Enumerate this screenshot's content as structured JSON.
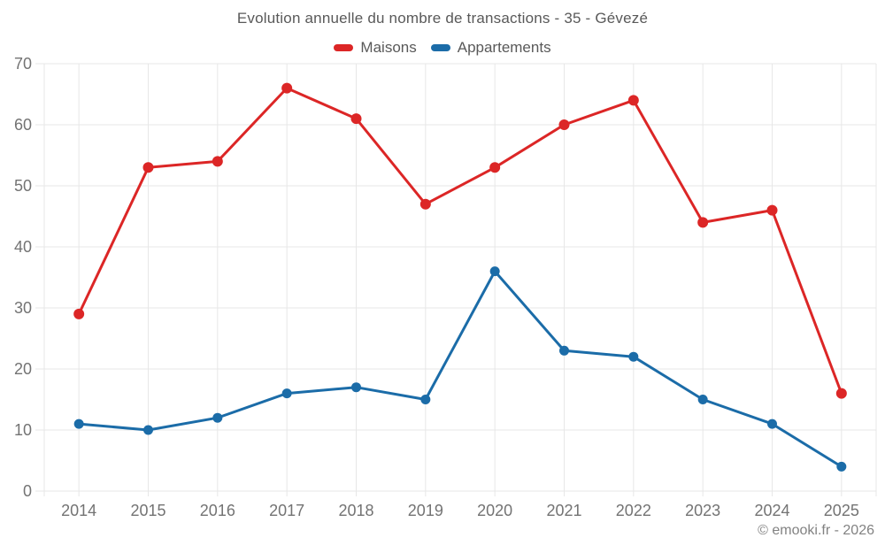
{
  "header": {
    "title": "Evolution annuelle du nombre de transactions - 35 - Gévezé"
  },
  "footer": {
    "copyright": "© emooki.fr - 2026"
  },
  "chart_data": {
    "type": "line",
    "title": "Evolution annuelle du nombre de transactions - 35 - Gévezé",
    "categories": [
      "2014",
      "2015",
      "2016",
      "2017",
      "2018",
      "2019",
      "2020",
      "2021",
      "2022",
      "2023",
      "2024",
      "2025"
    ],
    "series": [
      {
        "name": "Maisons",
        "color": "#dc2626",
        "marker_radius": 6,
        "values": [
          29,
          53,
          54,
          66,
          61,
          47,
          53,
          60,
          64,
          44,
          46,
          16
        ]
      },
      {
        "name": "Appartements",
        "color": "#1b6ca8",
        "marker_radius": 5.5,
        "values": [
          11,
          10,
          12,
          16,
          17,
          15,
          36,
          23,
          22,
          15,
          11,
          4
        ]
      }
    ],
    "xlabel": "",
    "ylabel": "",
    "ylim": [
      0,
      70
    ],
    "ytick_step": 10,
    "yticks": [
      0,
      10,
      20,
      30,
      40,
      50,
      60,
      70
    ],
    "grid": true,
    "legend_position": "top",
    "grid_color": "#e7e7e7",
    "axis_text_color": "#737373",
    "line_width": 3
  }
}
